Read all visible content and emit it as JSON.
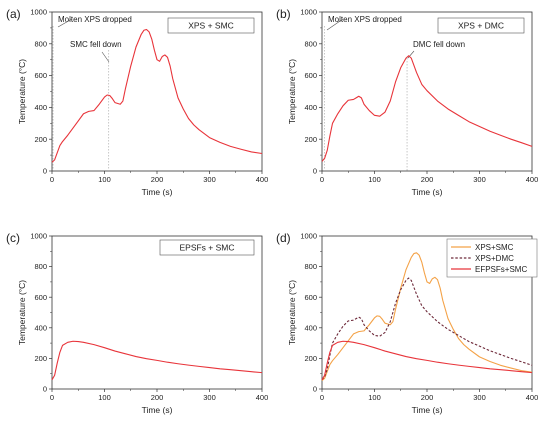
{
  "colors": {
    "red": "#e8343a",
    "orange": "#f4a247",
    "dark": "#6e2a3a",
    "axis": "#333333",
    "vline": "#b0b0b0"
  },
  "chart_data": [
    {
      "type": "line",
      "panel_label": "(a)",
      "box_label": "XPS + SMC",
      "xlabel": "Time (s)",
      "ylabel": "Temperature (°C)",
      "xlim": [
        0,
        400
      ],
      "ylim": [
        0,
        1000
      ],
      "xticks": [
        0,
        100,
        200,
        300,
        400
      ],
      "yticks": [
        0,
        200,
        400,
        600,
        800,
        1000
      ],
      "annotations": [
        {
          "text": "Molten XPS dropped",
          "x": 2
        },
        {
          "text": "SMC fell down",
          "x": 108
        }
      ],
      "series": [
        {
          "color": "#e8343a",
          "dash": false,
          "points": [
            [
              0,
              55
            ],
            [
              5,
              70
            ],
            [
              10,
              115
            ],
            [
              15,
              160
            ],
            [
              20,
              185
            ],
            [
              30,
              225
            ],
            [
              40,
              270
            ],
            [
              50,
              315
            ],
            [
              60,
              360
            ],
            [
              70,
              375
            ],
            [
              80,
              380
            ],
            [
              90,
              420
            ],
            [
              100,
              465
            ],
            [
              105,
              478
            ],
            [
              110,
              475
            ],
            [
              115,
              455
            ],
            [
              120,
              430
            ],
            [
              130,
              420
            ],
            [
              135,
              440
            ],
            [
              140,
              520
            ],
            [
              150,
              660
            ],
            [
              160,
              780
            ],
            [
              170,
              860
            ],
            [
              175,
              885
            ],
            [
              180,
              890
            ],
            [
              185,
              875
            ],
            [
              190,
              830
            ],
            [
              195,
              760
            ],
            [
              200,
              700
            ],
            [
              205,
              690
            ],
            [
              210,
              720
            ],
            [
              215,
              730
            ],
            [
              220,
              715
            ],
            [
              225,
              660
            ],
            [
              230,
              580
            ],
            [
              240,
              460
            ],
            [
              250,
              390
            ],
            [
              260,
              330
            ],
            [
              270,
              290
            ],
            [
              280,
              260
            ],
            [
              300,
              210
            ],
            [
              320,
              180
            ],
            [
              340,
              155
            ],
            [
              360,
              137
            ],
            [
              380,
              120
            ],
            [
              400,
              110
            ]
          ]
        }
      ]
    },
    {
      "type": "line",
      "panel_label": "(b)",
      "box_label": "XPS + DMC",
      "xlabel": "Time (s)",
      "ylabel": "Temperature (°C)",
      "xlim": [
        0,
        400
      ],
      "ylim": [
        0,
        1000
      ],
      "xticks": [
        0,
        100,
        200,
        300,
        400
      ],
      "yticks": [
        0,
        200,
        400,
        600,
        800,
        1000
      ],
      "annotations": [
        {
          "text": "Molten XPS dropped",
          "x": 5
        },
        {
          "text": "DMC fell down",
          "x": 162
        }
      ],
      "series": [
        {
          "color": "#e8343a",
          "dash": false,
          "points": [
            [
              0,
              60
            ],
            [
              5,
              80
            ],
            [
              10,
              130
            ],
            [
              15,
              220
            ],
            [
              20,
              300
            ],
            [
              30,
              360
            ],
            [
              40,
              410
            ],
            [
              50,
              445
            ],
            [
              60,
              450
            ],
            [
              65,
              460
            ],
            [
              70,
              470
            ],
            [
              75,
              460
            ],
            [
              80,
              420
            ],
            [
              90,
              380
            ],
            [
              100,
              350
            ],
            [
              110,
              345
            ],
            [
              120,
              370
            ],
            [
              130,
              440
            ],
            [
              140,
              560
            ],
            [
              150,
              650
            ],
            [
              160,
              710
            ],
            [
              165,
              725
            ],
            [
              170,
              710
            ],
            [
              180,
              620
            ],
            [
              190,
              545
            ],
            [
              200,
              505
            ],
            [
              220,
              440
            ],
            [
              240,
              390
            ],
            [
              260,
              350
            ],
            [
              280,
              310
            ],
            [
              300,
              280
            ],
            [
              320,
              250
            ],
            [
              340,
              225
            ],
            [
              360,
              200
            ],
            [
              380,
              178
            ],
            [
              400,
              155
            ]
          ]
        }
      ]
    },
    {
      "type": "line",
      "panel_label": "(c)",
      "box_label": "EPSFs + SMC",
      "xlabel": "Time (s)",
      "ylabel": "Temperature (°C)",
      "xlim": [
        0,
        400
      ],
      "ylim": [
        0,
        1000
      ],
      "xticks": [
        0,
        100,
        200,
        300,
        400
      ],
      "yticks": [
        0,
        200,
        400,
        600,
        800,
        1000
      ],
      "annotations": [],
      "series": [
        {
          "color": "#e8343a",
          "dash": false,
          "points": [
            [
              0,
              60
            ],
            [
              5,
              90
            ],
            [
              10,
              170
            ],
            [
              15,
              240
            ],
            [
              20,
              285
            ],
            [
              30,
              305
            ],
            [
              40,
              312
            ],
            [
              50,
              310
            ],
            [
              60,
              305
            ],
            [
              80,
              290
            ],
            [
              100,
              270
            ],
            [
              120,
              248
            ],
            [
              140,
              230
            ],
            [
              160,
              212
            ],
            [
              180,
              198
            ],
            [
              200,
              187
            ],
            [
              220,
              175
            ],
            [
              240,
              165
            ],
            [
              260,
              156
            ],
            [
              280,
              148
            ],
            [
              300,
              140
            ],
            [
              320,
              132
            ],
            [
              340,
              126
            ],
            [
              360,
              120
            ],
            [
              380,
              113
            ],
            [
              400,
              107
            ]
          ]
        }
      ]
    },
    {
      "type": "line",
      "panel_label": "(d)",
      "box_label": "",
      "xlabel": "Time (s)",
      "ylabel": "Temperature (°C)",
      "xlim": [
        0,
        400
      ],
      "ylim": [
        0,
        1000
      ],
      "xticks": [
        0,
        100,
        200,
        300,
        400
      ],
      "yticks": [
        0,
        200,
        400,
        600,
        800,
        1000
      ],
      "annotations": [],
      "legend": "top-right",
      "series": [
        {
          "name": "XPS+SMC",
          "color": "#f4a247",
          "dash": false,
          "points": [
            [
              0,
              55
            ],
            [
              5,
              70
            ],
            [
              10,
              115
            ],
            [
              15,
              160
            ],
            [
              20,
              185
            ],
            [
              30,
              225
            ],
            [
              40,
              270
            ],
            [
              50,
              315
            ],
            [
              60,
              360
            ],
            [
              70,
              375
            ],
            [
              80,
              380
            ],
            [
              90,
              420
            ],
            [
              100,
              465
            ],
            [
              105,
              478
            ],
            [
              110,
              475
            ],
            [
              115,
              455
            ],
            [
              120,
              430
            ],
            [
              130,
              420
            ],
            [
              135,
              440
            ],
            [
              140,
              520
            ],
            [
              150,
              660
            ],
            [
              160,
              780
            ],
            [
              170,
              860
            ],
            [
              175,
              885
            ],
            [
              180,
              890
            ],
            [
              185,
              875
            ],
            [
              190,
              830
            ],
            [
              195,
              760
            ],
            [
              200,
              700
            ],
            [
              205,
              690
            ],
            [
              210,
              720
            ],
            [
              215,
              730
            ],
            [
              220,
              715
            ],
            [
              225,
              660
            ],
            [
              230,
              580
            ],
            [
              240,
              460
            ],
            [
              250,
              390
            ],
            [
              260,
              330
            ],
            [
              270,
              290
            ],
            [
              280,
              260
            ],
            [
              300,
              210
            ],
            [
              320,
              180
            ],
            [
              340,
              155
            ],
            [
              360,
              137
            ],
            [
              380,
              120
            ],
            [
              400,
              110
            ]
          ]
        },
        {
          "name": "XPS+DMC",
          "color": "#6e2a3a",
          "dash": true,
          "points": [
            [
              0,
              60
            ],
            [
              5,
              80
            ],
            [
              10,
              130
            ],
            [
              15,
              220
            ],
            [
              20,
              300
            ],
            [
              30,
              360
            ],
            [
              40,
              410
            ],
            [
              50,
              445
            ],
            [
              60,
              450
            ],
            [
              65,
              460
            ],
            [
              70,
              470
            ],
            [
              75,
              460
            ],
            [
              80,
              420
            ],
            [
              90,
              380
            ],
            [
              100,
              350
            ],
            [
              110,
              345
            ],
            [
              120,
              370
            ],
            [
              130,
              440
            ],
            [
              140,
              560
            ],
            [
              150,
              650
            ],
            [
              160,
              710
            ],
            [
              165,
              725
            ],
            [
              170,
              710
            ],
            [
              180,
              620
            ],
            [
              190,
              545
            ],
            [
              200,
              505
            ],
            [
              220,
              440
            ],
            [
              240,
              390
            ],
            [
              260,
              350
            ],
            [
              280,
              310
            ],
            [
              300,
              280
            ],
            [
              320,
              250
            ],
            [
              340,
              225
            ],
            [
              360,
              200
            ],
            [
              380,
              178
            ],
            [
              400,
              155
            ]
          ]
        },
        {
          "name": "EFPSFs+SMC",
          "color": "#e8343a",
          "dash": false,
          "points": [
            [
              0,
              60
            ],
            [
              5,
              90
            ],
            [
              10,
              170
            ],
            [
              15,
              240
            ],
            [
              20,
              285
            ],
            [
              30,
              305
            ],
            [
              40,
              312
            ],
            [
              50,
              310
            ],
            [
              60,
              305
            ],
            [
              80,
              290
            ],
            [
              100,
              270
            ],
            [
              120,
              248
            ],
            [
              140,
              230
            ],
            [
              160,
              212
            ],
            [
              180,
              198
            ],
            [
              200,
              187
            ],
            [
              220,
              175
            ],
            [
              240,
              165
            ],
            [
              260,
              156
            ],
            [
              280,
              148
            ],
            [
              300,
              140
            ],
            [
              320,
              132
            ],
            [
              340,
              126
            ],
            [
              360,
              120
            ],
            [
              380,
              113
            ],
            [
              400,
              107
            ]
          ]
        }
      ]
    }
  ]
}
